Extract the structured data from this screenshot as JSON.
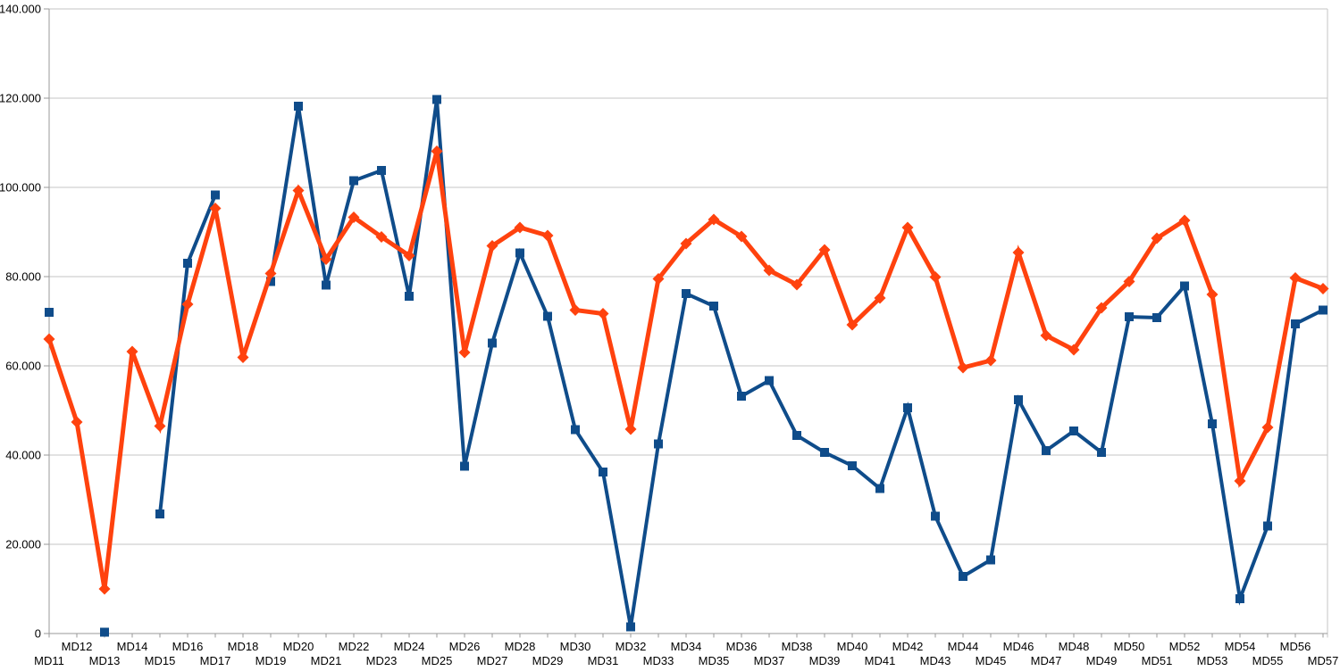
{
  "style": {
    "background_color": "#ffffff",
    "gridline_color": "#c6c6c6",
    "axis_line_color": "#999999",
    "label_color": "#000000"
  },
  "chart_data": {
    "type": "line",
    "title": "",
    "legend": "none",
    "grid": "horizontal",
    "x_label_rows": "staggered-two-rows",
    "ylim": [
      0,
      140000
    ],
    "y_tick_interval": 20000,
    "y_tick_labels": [
      "0",
      "20.000",
      "40.000",
      "60.000",
      "80.000",
      "100.000",
      "120.000",
      "140.000"
    ],
    "categories": [
      "MD11",
      "MD12",
      "MD13",
      "MD14",
      "MD15",
      "MD16",
      "MD17",
      "MD18",
      "MD19",
      "MD20",
      "MD21",
      "MD22",
      "MD23",
      "MD24",
      "MD25",
      "MD26",
      "MD27",
      "MD28",
      "MD29",
      "MD30",
      "MD31",
      "MD32",
      "MD33",
      "MD34",
      "MD35",
      "MD36",
      "MD37",
      "MD38",
      "MD39",
      "MD40",
      "MD41",
      "MD42",
      "MD43",
      "MD44",
      "MD45",
      "MD46",
      "MD47",
      "MD48",
      "MD49",
      "MD50",
      "MD51",
      "MD52",
      "MD53",
      "MD54",
      "MD55",
      "MD56",
      "MD57"
    ],
    "series": [
      {
        "id": "series-1",
        "color": "#0F4C8A",
        "marker": "square",
        "values": [
          72000,
          null,
          300,
          null,
          26800,
          83000,
          98300,
          null,
          78900,
          118200,
          78100,
          101500,
          103800,
          75600,
          119700,
          37500,
          65100,
          85300,
          71100,
          45700,
          36200,
          1500,
          42500,
          76200,
          73400,
          53200,
          56700,
          44400,
          40600,
          37600,
          32500,
          50600,
          26300,
          12800,
          16500,
          52400,
          41000,
          45400,
          40600,
          71000,
          70800,
          77900,
          47000,
          7800,
          24100,
          69400,
          72500
        ]
      },
      {
        "id": "series-2",
        "color": "#FF420E",
        "marker": "diamond",
        "values": [
          66000,
          47400,
          10000,
          63200,
          46500,
          73800,
          95300,
          61900,
          80700,
          99300,
          83900,
          93300,
          88900,
          84700,
          108100,
          63000,
          86900,
          91000,
          89200,
          72500,
          71700,
          45800,
          79500,
          87400,
          92800,
          89000,
          81400,
          78200,
          86000,
          69200,
          75200,
          91000,
          79900,
          59600,
          61200,
          85400,
          66800,
          63600,
          73000,
          78900,
          88600,
          92600,
          76000,
          34200,
          46200,
          79700,
          77300
        ]
      }
    ]
  }
}
